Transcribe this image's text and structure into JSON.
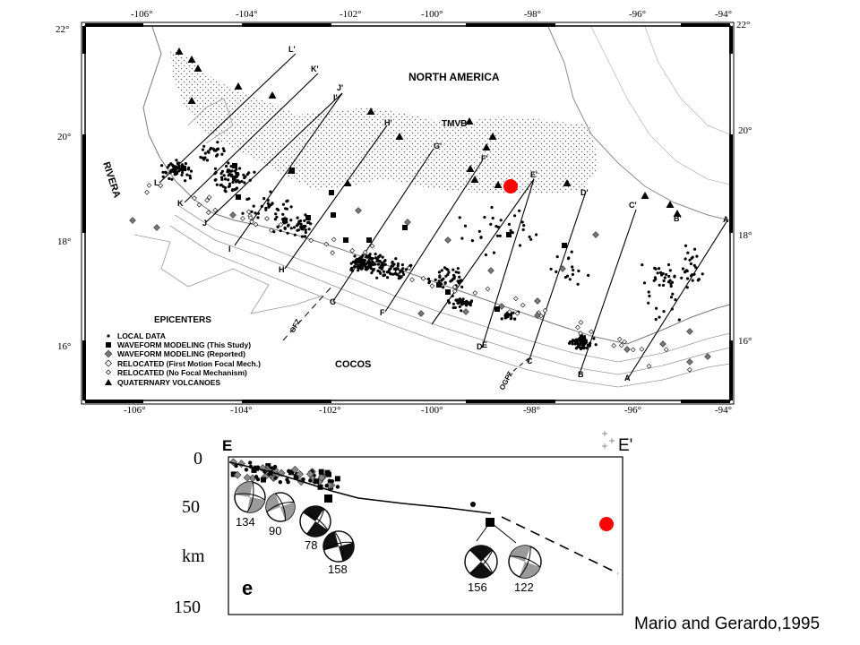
{
  "map": {
    "lon_ticks": [
      "-106°",
      "-104°",
      "-102°",
      "-100°",
      "-98°",
      "-96°",
      "-94°"
    ],
    "lat_ticks": [
      "22°",
      "20°",
      "18°",
      "16°"
    ],
    "plates": {
      "north_america": "NORTH AMERICA",
      "cocos": "COCOS",
      "rivera": "RIVERA",
      "tmvb": "TMVB"
    },
    "fracture_zones": {
      "ofz": "OFZ",
      "ogfz": "OGFZ"
    },
    "profiles": [
      {
        "start": "A",
        "end": "A'"
      },
      {
        "start": "B",
        "end": "B'"
      },
      {
        "start": "C",
        "end": "C'"
      },
      {
        "start": "D",
        "end": "D'"
      },
      {
        "start": "E",
        "end": "E'"
      },
      {
        "start": "F",
        "end": "F'"
      },
      {
        "start": "G",
        "end": "G'"
      },
      {
        "start": "H",
        "end": "H'"
      },
      {
        "start": "I",
        "end": "I'"
      },
      {
        "start": "J",
        "end": "J'"
      },
      {
        "start": "K",
        "end": "K'"
      },
      {
        "start": "L",
        "end": "L'"
      }
    ],
    "legend": {
      "title": "EPICENTERS",
      "items": [
        {
          "symbol": "small-dot",
          "label": "LOCAL DATA"
        },
        {
          "symbol": "filled-square",
          "label": "WAVEFORM MODELING (This Study)"
        },
        {
          "symbol": "gray-diamond",
          "label": "WAVEFORM MODELING (Reported)"
        },
        {
          "symbol": "open-diamond",
          "label": "RELOCATED (First Motion Focal Mech.)"
        },
        {
          "symbol": "small-open-diamond",
          "label": "RELOCATED (No Focal Mechanism)"
        },
        {
          "symbol": "filled-triangle",
          "label": "QUATERNARY VOLCANOES"
        }
      ]
    },
    "marker_color": "#ff0000"
  },
  "cross_section": {
    "start_label": "E",
    "end_label": "E'",
    "panel_label": "e",
    "depth_ticks": [
      "0",
      "50",
      "150"
    ],
    "depth_unit": "km",
    "mechanisms": [
      "134",
      "90",
      "78",
      "158",
      "156",
      "122"
    ]
  },
  "citation": "Mario and Gerardo,1995"
}
